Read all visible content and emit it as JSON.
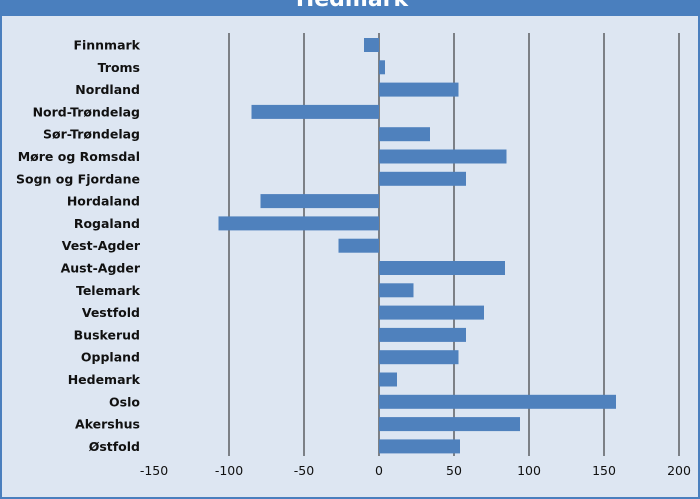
{
  "chart_data": {
    "type": "bar",
    "orientation": "horizontal",
    "title": "Hedmark",
    "categories": [
      "Finnmark",
      "Troms",
      "Nordland",
      "Nord-Trøndelag",
      "Sør-Trøndelag",
      "Møre og Romsdal",
      "Sogn og Fjordane",
      "Hordaland",
      "Rogaland",
      "Vest-Agder",
      "Aust-Agder",
      "Telemark",
      "Vestfold",
      "Buskerud",
      "Oppland",
      "Hedemark",
      "Oslo",
      "Akershus",
      "Østfold"
    ],
    "values": [
      -10,
      4,
      53,
      -85,
      34,
      85,
      58,
      -79,
      -107,
      -27,
      84,
      23,
      70,
      58,
      53,
      12,
      158,
      94,
      54
    ],
    "xlim": [
      -150,
      200
    ],
    "xticks": [
      -150,
      -100,
      -50,
      0,
      50,
      100,
      150,
      200
    ],
    "xtick_labels": [
      "-150",
      "-100",
      "-50",
      "0",
      "50",
      "100",
      "150",
      "200"
    ],
    "grid": "vertical",
    "bar_color": "#4f81bd",
    "background_color": "#dde6f2",
    "frame_color": "#4a7fbe",
    "xlabel": "",
    "ylabel": ""
  }
}
